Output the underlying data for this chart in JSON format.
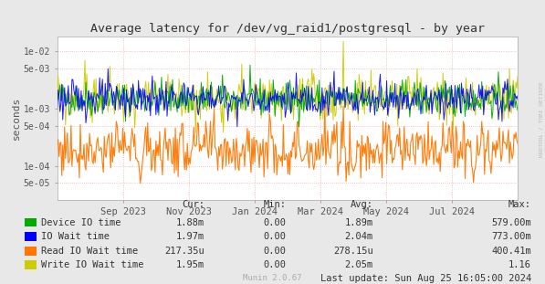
{
  "title": "Average latency for /dev/vg_raid1/postgresql - by year",
  "ylabel": "seconds",
  "background_color": "#e8e8e8",
  "plot_bg_color": "#ffffff",
  "grid_color": "#ffaaaa",
  "title_color": "#333333",
  "watermark": "RRDTOOL / TOBI OETIKER",
  "munin_version": "Munin 2.0.67",
  "last_update": "Last update: Sun Aug 25 16:05:00 2024",
  "xticklabels": [
    "Sep 2023",
    "Nov 2023",
    "Jan 2024",
    "Mar 2024",
    "May 2024",
    "Jul 2024"
  ],
  "ytick_vals": [
    5e-05,
    0.0001,
    0.0005,
    0.001,
    0.005,
    0.01
  ],
  "ytick_labels": [
    "5e-05",
    "1e-04",
    "5e-04",
    "1e-03",
    "5e-03",
    "1e-02"
  ],
  "ylim_min": 2.5e-05,
  "ylim_max": 0.018,
  "legend_items": [
    {
      "label": "Device IO time",
      "color": "#00aa00"
    },
    {
      "label": "IO Wait time",
      "color": "#0000ff"
    },
    {
      "label": "Read IO Wait time",
      "color": "#ff7700"
    },
    {
      "label": "Write IO Wait time",
      "color": "#cccc00"
    }
  ],
  "stats_headers": [
    "Cur:",
    "Min:",
    "Avg:",
    "Max:"
  ],
  "stats": [
    [
      "1.88m",
      "0.00",
      "1.89m",
      "579.00m"
    ],
    [
      "1.97m",
      "0.00",
      "2.04m",
      "773.00m"
    ],
    [
      "217.35u",
      "0.00",
      "278.15u",
      "400.41m"
    ],
    [
      "1.95m",
      "0.00",
      "2.05m",
      "1.16"
    ]
  ],
  "seed": 42,
  "n_points": 500
}
